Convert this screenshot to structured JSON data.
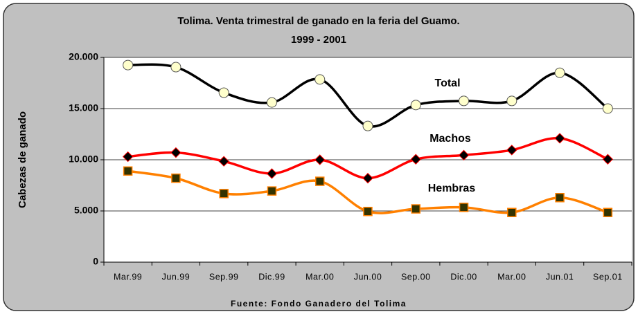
{
  "chart_data": {
    "type": "line",
    "title": "Tolima. Venta trimestral de ganado en la feria del Guamo.",
    "subtitle": "1999 - 2001",
    "y_label": "Cabezas de ganado",
    "source": "Fuente: Fondo Ganadero del Tolima",
    "categories": [
      "Mar.99",
      "Jun.99",
      "Sep.99",
      "Dic.99",
      "Mar.00",
      "Jun.00",
      "Sep.00",
      "Dic.00",
      "Mar.00",
      "Jun.01",
      "Sep.01"
    ],
    "series": [
      {
        "name": "Total",
        "color": "#000000",
        "marker": "circle",
        "marker_color": "#ffffcc",
        "values": [
          19250,
          19050,
          16550,
          15600,
          17850,
          13300,
          15350,
          15750,
          15750,
          18500,
          15000
        ]
      },
      {
        "name": "Machos",
        "color": "#ff0000",
        "marker": "diamond",
        "marker_color": "#000000",
        "values": [
          10300,
          10700,
          9850,
          8650,
          10000,
          8200,
          10050,
          10450,
          10950,
          12100,
          10050
        ]
      },
      {
        "name": "Hembras",
        "color": "#ff8000",
        "marker": "square",
        "marker_color": "#333300",
        "values": [
          8900,
          8200,
          6700,
          6950,
          7900,
          4950,
          5200,
          5350,
          4850,
          6300,
          4850
        ]
      }
    ],
    "ylim": [
      0,
      20000
    ],
    "yticks": [
      0,
      {
        "value": 5000,
        "label": "5.000"
      },
      {
        "value": 10000,
        "label": "10.000"
      },
      {
        "value": 15000,
        "label": "15.000"
      },
      {
        "value": 20000,
        "label": "20.000"
      }
    ],
    "grid": true
  }
}
